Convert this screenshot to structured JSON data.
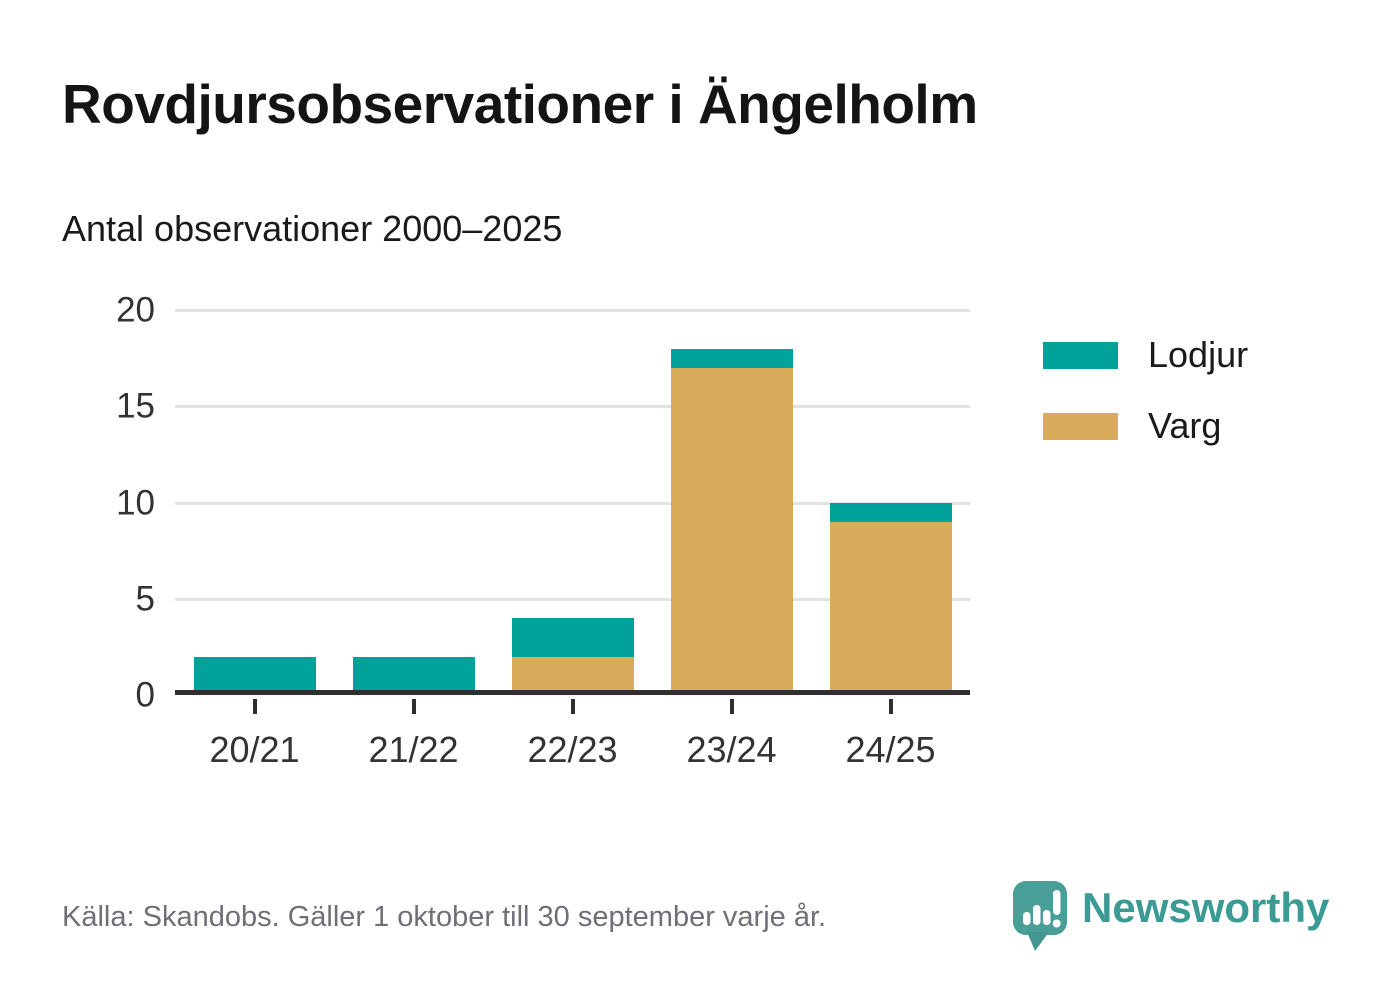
{
  "header": {
    "title": "Rovdjursobservationer i Ängelholm",
    "subtitle": "Antal observationer 2000–2025"
  },
  "footer": {
    "source": "Källa: Skandobs. Gäller 1 oktober till 30 september varje år.",
    "brand_name": "Newsworthy"
  },
  "colors": {
    "lodjur": "#00a29a",
    "varg": "#d9ac5c",
    "axis": "#2f2f2f",
    "gridline": "#e3e3e3",
    "text": "#1a1a1a",
    "muted_text": "#6f6f78",
    "brand": "#3a9a94"
  },
  "chart_data": {
    "type": "bar",
    "stacked": true,
    "title": "Rovdjursobservationer i Ängelholm",
    "subtitle": "Antal observationer 2000–2025",
    "xlabel": "",
    "ylabel": "",
    "categories": [
      "20/21",
      "21/22",
      "22/23",
      "23/24",
      "24/25"
    ],
    "series": [
      {
        "name": "Varg",
        "color": "#d9ac5c",
        "values": [
          0,
          0,
          2,
          17,
          9
        ]
      },
      {
        "name": "Lodjur",
        "color": "#00a29a",
        "values": [
          2,
          2,
          2,
          1,
          1
        ]
      }
    ],
    "legend": [
      {
        "label": "Lodjur",
        "color": "#00a29a"
      },
      {
        "label": "Varg",
        "color": "#d9ac5c"
      }
    ],
    "legend_position": "right",
    "yticks": [
      0,
      5,
      10,
      15,
      20
    ],
    "ylim": [
      0,
      20
    ],
    "grid": "horizontal"
  }
}
